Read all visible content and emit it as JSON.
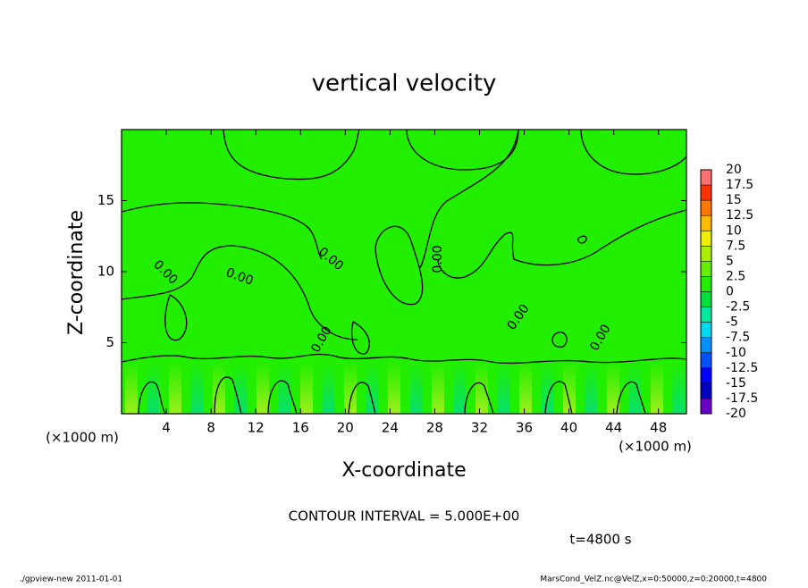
{
  "chart_data": {
    "type": "contour",
    "title": "vertical velocity",
    "x_label": "X-coordinate",
    "y_label": "Z-coordinate",
    "x_unit": "(×1000 m)",
    "y_unit": "(×1000 m)",
    "xlim": [
      0,
      50.5
    ],
    "ylim": [
      0,
      20
    ],
    "xticks": [
      4,
      8,
      12,
      16,
      20,
      24,
      28,
      32,
      36,
      40,
      44,
      48
    ],
    "yticks": [
      5,
      10,
      15
    ],
    "fill_color": "#22ee00",
    "contour_label": "0.00",
    "contour_interval": "CONTOUR INTERVAL = 5.000E+00",
    "time": "t=4800 s",
    "colorbar": {
      "ticks": [
        -20,
        -17.5,
        -15,
        -12.5,
        -10,
        -7.5,
        -5,
        -2.5,
        0,
        2.5,
        5,
        7.5,
        10,
        12.5,
        15,
        17.5,
        20
      ],
      "colors": [
        "#6a00c8",
        "#0000c0",
        "#0000ff",
        "#0050ff",
        "#0090ff",
        "#00d8f0",
        "#00e8a0",
        "#00e040",
        "#22ee00",
        "#66ee00",
        "#aaee00",
        "#eeee00",
        "#ffbb00",
        "#ff7700",
        "#ff3300",
        "#ff7070",
        "#f5a0a0"
      ]
    },
    "footer_left": "./gpview-new  2011-01-01",
    "footer_right": "MarsCond_VelZ.nc@VelZ,x=0:50000,z=0:20000,t=4800"
  }
}
